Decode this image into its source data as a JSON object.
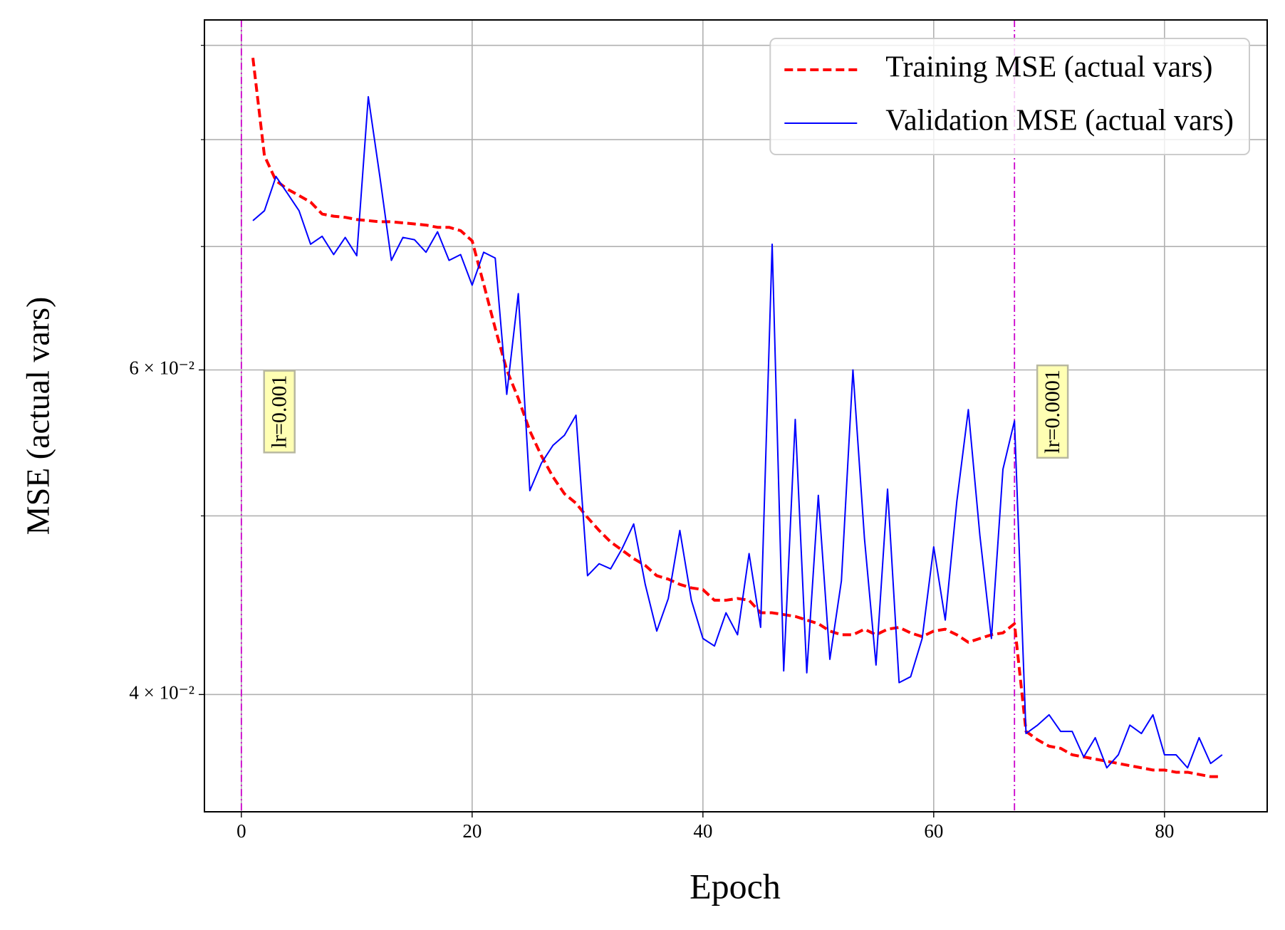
{
  "chart_data": {
    "type": "line",
    "xlabel": "Epoch",
    "ylabel": "MSE (actual vars)",
    "log_y": true,
    "grid": true,
    "legend": "upper right",
    "xlim": [
      -3.2,
      88.9
    ],
    "xticks": [
      0,
      20,
      40,
      60,
      80
    ],
    "ylim": [
      0.03455,
      0.0929
    ],
    "yticks": [
      {
        "value": 0.04,
        "label": "4 × 10⁻²"
      },
      {
        "value": 0.06,
        "label": "6 × 10⁻²"
      }
    ],
    "yticks_minor": [
      0.05,
      0.07,
      0.08,
      0.09
    ],
    "vlines": [
      {
        "x": 0,
        "color": "#cc00cc",
        "annotation": "lr=0.001"
      },
      {
        "x": 67,
        "color": "#cc00cc",
        "annotation": "lr=0.0001"
      }
    ],
    "x": [
      1,
      2,
      3,
      4,
      5,
      6,
      7,
      8,
      9,
      10,
      11,
      12,
      13,
      14,
      15,
      16,
      17,
      18,
      19,
      20,
      21,
      22,
      23,
      24,
      25,
      26,
      27,
      28,
      29,
      30,
      31,
      32,
      33,
      34,
      35,
      36,
      37,
      38,
      39,
      40,
      41,
      42,
      43,
      44,
      45,
      46,
      47,
      48,
      49,
      50,
      51,
      52,
      53,
      54,
      55,
      56,
      57,
      58,
      59,
      60,
      61,
      62,
      63,
      64,
      65,
      66,
      67,
      68,
      69,
      70,
      71,
      72,
      73,
      74,
      75,
      76,
      77,
      78,
      79,
      80,
      81,
      82,
      83,
      84,
      85
    ],
    "series": [
      {
        "name": "Training MSE (actual vars)",
        "color": "#ff0000",
        "dashed": true,
        "values": [
          0.0886,
          0.0784,
          0.076,
          0.0752,
          0.0746,
          0.074,
          0.0729,
          0.0727,
          0.0726,
          0.0724,
          0.0723,
          0.0722,
          0.0722,
          0.0721,
          0.072,
          0.0719,
          0.0717,
          0.0717,
          0.0714,
          0.0705,
          0.0668,
          0.0632,
          0.06,
          0.0579,
          0.0556,
          0.0539,
          0.0525,
          0.0514,
          0.0508,
          0.0499,
          0.0491,
          0.0484,
          0.0479,
          0.0474,
          0.047,
          0.0464,
          0.0462,
          0.0459,
          0.0457,
          0.0456,
          0.045,
          0.045,
          0.0451,
          0.045,
          0.0443,
          0.0443,
          0.0442,
          0.0441,
          0.0439,
          0.0437,
          0.0433,
          0.0431,
          0.0431,
          0.0434,
          0.0431,
          0.0434,
          0.0435,
          0.0432,
          0.043,
          0.0433,
          0.0434,
          0.0431,
          0.0427,
          0.0429,
          0.0431,
          0.0432,
          0.0437,
          0.0382,
          0.0378,
          0.0375,
          0.0374,
          0.0371,
          0.037,
          0.0369,
          0.0368,
          0.0367,
          0.0366,
          0.0365,
          0.0364,
          0.0364,
          0.0363,
          0.0363,
          0.0362,
          0.0361,
          0.0361
        ]
      },
      {
        "name": "Validation MSE (actual vars)",
        "color": "#0000ff",
        "dashed": false,
        "values": [
          0.0723,
          0.0732,
          0.0764,
          0.0748,
          0.0732,
          0.0702,
          0.0709,
          0.0693,
          0.0708,
          0.0692,
          0.0844,
          0.0764,
          0.0688,
          0.0708,
          0.0706,
          0.0695,
          0.0713,
          0.0688,
          0.0693,
          0.0667,
          0.0695,
          0.069,
          0.0582,
          0.066,
          0.0516,
          0.0534,
          0.0546,
          0.0553,
          0.0567,
          0.0464,
          0.0471,
          0.0468,
          0.048,
          0.0495,
          0.0459,
          0.0433,
          0.0451,
          0.0491,
          0.045,
          0.0429,
          0.0425,
          0.0443,
          0.0431,
          0.0477,
          0.0435,
          0.0702,
          0.0412,
          0.0564,
          0.0411,
          0.0513,
          0.0418,
          0.0461,
          0.06,
          0.0486,
          0.0415,
          0.0517,
          0.0406,
          0.0409,
          0.0429,
          0.0481,
          0.0439,
          0.0509,
          0.0571,
          0.0488,
          0.0429,
          0.053,
          0.0563,
          0.0381,
          0.0385,
          0.039,
          0.0382,
          0.0382,
          0.037,
          0.0379,
          0.0365,
          0.0371,
          0.0385,
          0.0381,
          0.039,
          0.0371,
          0.0371,
          0.0365,
          0.0379,
          0.0367,
          0.0371
        ]
      }
    ]
  }
}
